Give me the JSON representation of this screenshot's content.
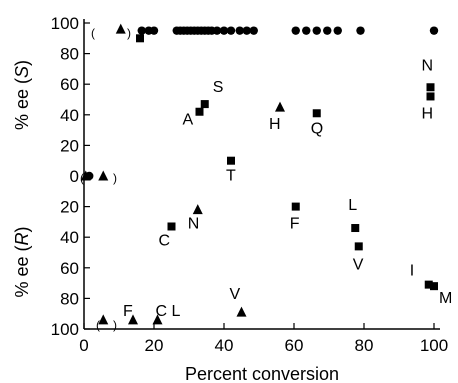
{
  "chart_data": {
    "type": "scatter",
    "xlabel": "Percent conversion",
    "ylabel_top": "% ee (S)",
    "ylabel_top_prefix": "% ee (",
    "ylabel_top_letter": "S",
    "ylabel_bottom": "% ee (R)",
    "ylabel_bottom_prefix": "% ee (",
    "ylabel_bottom_letter": "R",
    "ylabel_suffix": ")",
    "xlim": [
      0,
      100
    ],
    "ylim": [
      -100,
      100
    ],
    "x_ticks": [
      0,
      20,
      40,
      60,
      80,
      100
    ],
    "x_tick_labels": [
      "0",
      "20",
      "40",
      "60",
      "80",
      "100"
    ],
    "y_ticks": [
      100,
      80,
      60,
      40,
      20,
      0,
      -20,
      -40,
      -60,
      -80,
      -100
    ],
    "y_tick_labels": [
      "100",
      "80",
      "60",
      "40",
      "20",
      "0",
      "20",
      "40",
      "60",
      "80",
      "100"
    ],
    "grid": false,
    "series": [
      {
        "marker": "circle",
        "points": [
          {
            "x": 16.5,
            "y": 95
          },
          {
            "x": 18.5,
            "y": 95
          },
          {
            "x": 20,
            "y": 95
          },
          {
            "x": 26.5,
            "y": 95
          },
          {
            "x": 27.5,
            "y": 95
          },
          {
            "x": 28.5,
            "y": 95
          },
          {
            "x": 29.5,
            "y": 95
          },
          {
            "x": 30.5,
            "y": 95
          },
          {
            "x": 31.5,
            "y": 95
          },
          {
            "x": 32.5,
            "y": 95
          },
          {
            "x": 33.5,
            "y": 95
          },
          {
            "x": 34.5,
            "y": 95
          },
          {
            "x": 35.5,
            "y": 95
          },
          {
            "x": 36.5,
            "y": 95
          },
          {
            "x": 38,
            "y": 95
          },
          {
            "x": 40,
            "y": 95
          },
          {
            "x": 42,
            "y": 95
          },
          {
            "x": 44.5,
            "y": 95
          },
          {
            "x": 46.5,
            "y": 95
          },
          {
            "x": 48.5,
            "y": 95
          },
          {
            "x": 60.5,
            "y": 95
          },
          {
            "x": 63.5,
            "y": 95
          },
          {
            "x": 66.5,
            "y": 95
          },
          {
            "x": 69.5,
            "y": 95
          },
          {
            "x": 72.5,
            "y": 95
          },
          {
            "x": 79,
            "y": 95
          },
          {
            "x": 100,
            "y": 95
          },
          {
            "x": 1.5,
            "y": 0
          }
        ]
      },
      {
        "marker": "square",
        "points": [
          {
            "x": 16,
            "y": 90,
            "label": ""
          },
          {
            "x": 33,
            "y": 42,
            "label": "A"
          },
          {
            "x": 34.5,
            "y": 47,
            "label": "S"
          },
          {
            "x": 42,
            "y": 10,
            "label": "T"
          },
          {
            "x": 66.5,
            "y": 41,
            "label": "Q"
          },
          {
            "x": 99,
            "y": 58,
            "label": "N"
          },
          {
            "x": 99,
            "y": 52,
            "label": "H"
          },
          {
            "x": 25,
            "y": -33,
            "label": "C"
          },
          {
            "x": 60.5,
            "y": -20,
            "label": "F"
          },
          {
            "x": 77.5,
            "y": -34,
            "label": "L"
          },
          {
            "x": 78.5,
            "y": -46,
            "label": "V"
          },
          {
            "x": 98.5,
            "y": -71,
            "label": "I"
          },
          {
            "x": 100,
            "y": -72,
            "label": "M"
          }
        ]
      },
      {
        "marker": "triangle",
        "points": [
          {
            "x": 10.5,
            "y": 96,
            "label": ""
          },
          {
            "x": 56,
            "y": 45,
            "label": "H"
          },
          {
            "x": 32.5,
            "y": -22,
            "label": "N"
          },
          {
            "x": 0.5,
            "y": 0,
            "label": ""
          },
          {
            "x": 5.5,
            "y": 0,
            "label": ""
          },
          {
            "x": 5.5,
            "y": -94,
            "label": ""
          },
          {
            "x": 14,
            "y": -94,
            "label": "F"
          },
          {
            "x": 21,
            "y": -94,
            "label": "C L"
          },
          {
            "x": 45,
            "y": -89,
            "label": "V"
          }
        ]
      }
    ],
    "annotations": {
      "paren_open": "(",
      "paren_close": ")"
    }
  }
}
